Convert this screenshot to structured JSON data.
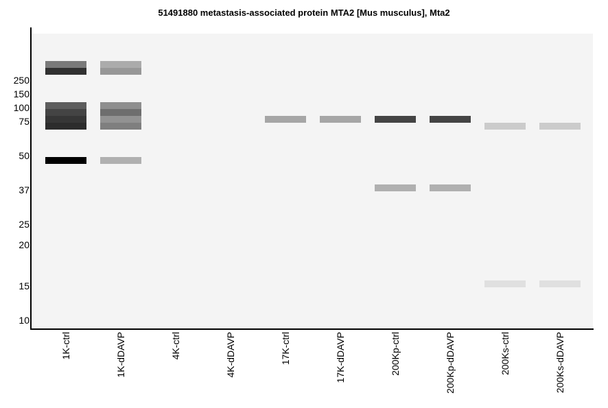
{
  "chart_data": {
    "type": "gel",
    "title": "51491880 metastasis-associated protein MTA2 [Mus musculus], Mta2",
    "y_ticks": [
      "250",
      "150",
      "100",
      "75",
      "50",
      "37",
      "25",
      "20",
      "15",
      "10"
    ],
    "lanes": [
      "1K-ctrl",
      "1K-dDAVP",
      "4K-ctrl",
      "4K-dDAVP",
      "17K-ctrl",
      "17K-dDAVP",
      "200Kp-ctrl",
      "200Kp-dDAVP",
      "200Ks-ctrl",
      "200Ks-dDAVP"
    ],
    "bands": [
      {
        "lane": "1K-ctrl",
        "marker": "250",
        "offset": -2.3,
        "intensity": 0.5
      },
      {
        "lane": "1K-ctrl",
        "marker": "250",
        "offset": -1.3,
        "intensity": 0.8
      },
      {
        "lane": "1K-ctrl",
        "marker": "100",
        "offset": -0.3,
        "intensity": 0.62
      },
      {
        "lane": "1K-ctrl",
        "marker": "100",
        "offset": 0.7,
        "intensity": 0.72
      },
      {
        "lane": "1K-ctrl",
        "marker": "75",
        "offset": -0.3,
        "intensity": 0.78
      },
      {
        "lane": "1K-ctrl",
        "marker": "75",
        "offset": 0.7,
        "intensity": 0.82
      },
      {
        "lane": "1K-ctrl",
        "marker": "50",
        "offset": 0.7,
        "intensity": 1.0
      },
      {
        "lane": "1K-dDAVP",
        "marker": "250",
        "offset": -2.3,
        "intensity": 0.3
      },
      {
        "lane": "1K-dDAVP",
        "marker": "250",
        "offset": -1.3,
        "intensity": 0.38
      },
      {
        "lane": "1K-dDAVP",
        "marker": "100",
        "offset": -0.3,
        "intensity": 0.42
      },
      {
        "lane": "1K-dDAVP",
        "marker": "100",
        "offset": 0.7,
        "intensity": 0.55
      },
      {
        "lane": "1K-dDAVP",
        "marker": "75",
        "offset": -0.3,
        "intensity": 0.4
      },
      {
        "lane": "1K-dDAVP",
        "marker": "75",
        "offset": 0.7,
        "intensity": 0.48
      },
      {
        "lane": "1K-dDAVP",
        "marker": "50",
        "offset": 0.7,
        "intensity": 0.28
      },
      {
        "lane": "17K-ctrl",
        "marker": "75",
        "offset": -0.3,
        "intensity": 0.32
      },
      {
        "lane": "17K-dDAVP",
        "marker": "75",
        "offset": -0.3,
        "intensity": 0.32
      },
      {
        "lane": "200Kp-ctrl",
        "marker": "75",
        "offset": -0.3,
        "intensity": 0.72
      },
      {
        "lane": "200Kp-ctrl",
        "marker": "37",
        "offset": -0.3,
        "intensity": 0.28
      },
      {
        "lane": "200Kp-dDAVP",
        "marker": "75",
        "offset": -0.3,
        "intensity": 0.72
      },
      {
        "lane": "200Kp-dDAVP",
        "marker": "37",
        "offset": -0.3,
        "intensity": 0.28
      },
      {
        "lane": "200Ks-ctrl",
        "marker": "75",
        "offset": 0.7,
        "intensity": 0.17
      },
      {
        "lane": "200Ks-ctrl",
        "marker": "15",
        "offset": -0.3,
        "intensity": 0.08
      },
      {
        "lane": "200Ks-dDAVP",
        "marker": "75",
        "offset": 0.7,
        "intensity": 0.17
      },
      {
        "lane": "200Ks-dDAVP",
        "marker": "15",
        "offset": -0.3,
        "intensity": 0.08
      }
    ],
    "plot_background": "#f4f4f4",
    "axis_color": "#000000"
  }
}
